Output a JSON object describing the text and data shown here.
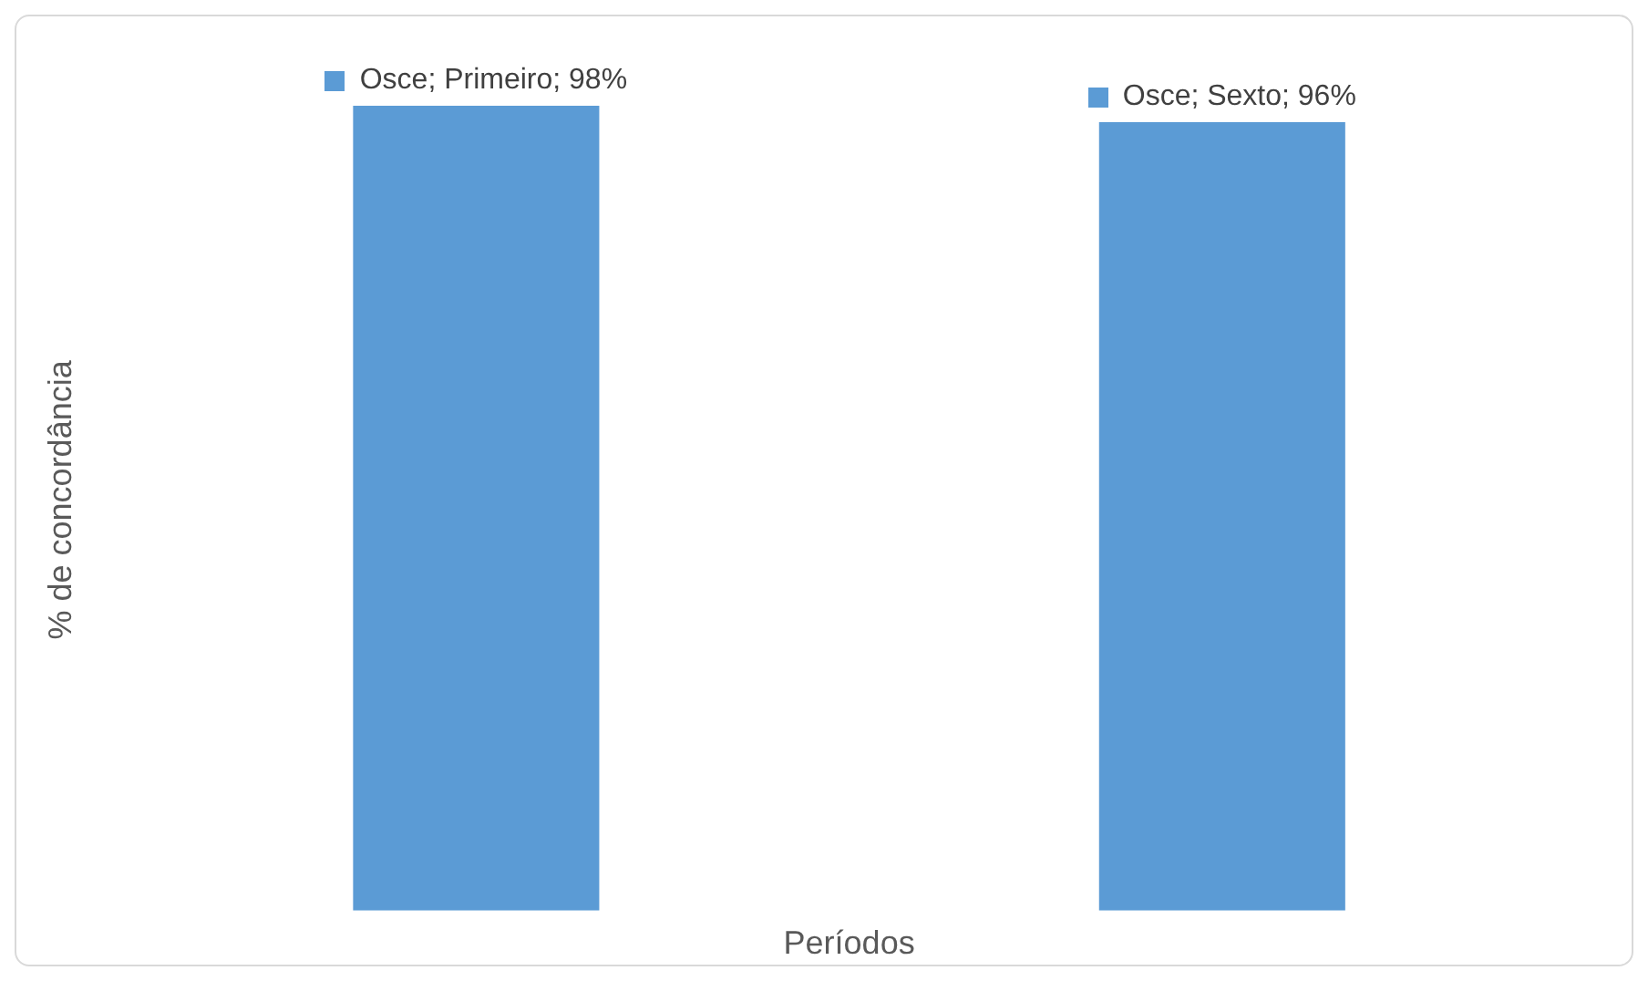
{
  "chart_data": {
    "type": "bar",
    "xlabel": "Períodos",
    "ylabel": "% de concordância",
    "categories": [
      null,
      null
    ],
    "series": [
      {
        "color": "#5b9bd5",
        "values": [
          98,
          96
        ],
        "value_labels": [
          "Osce; Primeiro; 98%",
          "Osce; Sexto; 96%"
        ]
      }
    ],
    "grid": false,
    "legend": false,
    "tick_labels": false
  }
}
